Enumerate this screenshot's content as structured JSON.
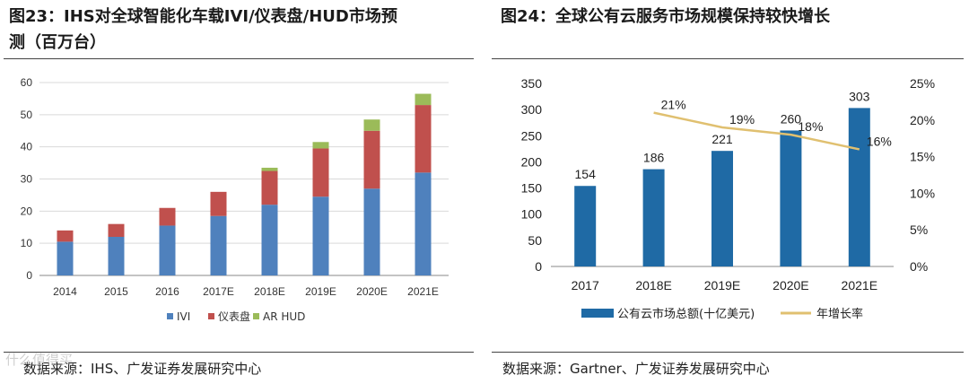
{
  "left": {
    "title_line1": "图23：IHS对全球智能化车载IVI/仪表盘/HUD市场预",
    "title_line2": "测（百万台）",
    "source": "数据来源：IHS、广发证券发展研究中心",
    "chart_data": {
      "type": "bar",
      "stacked": true,
      "categories": [
        "2014",
        "2015",
        "2016",
        "2017E",
        "2018E",
        "2019E",
        "2020E",
        "2021E"
      ],
      "series": [
        {
          "name": "IVI",
          "color": "#4f81bd",
          "values": [
            10.5,
            12,
            15.5,
            18.5,
            22,
            24.5,
            27,
            32
          ]
        },
        {
          "name": "仪表盘",
          "color": "#c0504d",
          "values": [
            3.5,
            4,
            5.5,
            7.5,
            10.5,
            15,
            18,
            21
          ]
        },
        {
          "name": "AR  HUD",
          "color": "#9bbb59",
          "values": [
            0,
            0,
            0,
            0,
            1,
            2,
            3.5,
            3.5
          ]
        }
      ],
      "yticks": [
        "0",
        "10",
        "20",
        "30",
        "40",
        "50",
        "60"
      ],
      "ylim": [
        0,
        60
      ],
      "grid": true,
      "legend_position": "bottom"
    }
  },
  "right": {
    "title": "图24：全球公有云服务市场规模保持较快增长",
    "source": "数据来源：Gartner、广发证券发展研究中心",
    "chart_data": {
      "type": "bar+line",
      "categories": [
        "2017",
        "2018E",
        "2019E",
        "2020E",
        "2021E"
      ],
      "bars": {
        "name": "公有云市场总额(十亿美元)",
        "color": "#1f6aa5",
        "values": [
          154,
          186,
          221,
          260,
          303
        ],
        "labels": [
          "154",
          "186",
          "221",
          "260",
          "303"
        ]
      },
      "line": {
        "name": "年增长率",
        "color": "#e0c070",
        "x": [
          "2018E",
          "2019E",
          "2020E",
          "2021E"
        ],
        "values": [
          21,
          19,
          18,
          16
        ],
        "labels": [
          "21%",
          "19%",
          "18%",
          "16%"
        ]
      },
      "yticks_left": [
        "0",
        "50",
        "100",
        "150",
        "200",
        "250",
        "300",
        "350"
      ],
      "ylim_left": [
        0,
        350
      ],
      "yticks_right": [
        "0%",
        "5%",
        "10%",
        "15%",
        "20%",
        "25%"
      ],
      "ylim_right": [
        0,
        25
      ],
      "grid": false,
      "legend_position": "bottom"
    }
  },
  "watermark": "什么值得买"
}
